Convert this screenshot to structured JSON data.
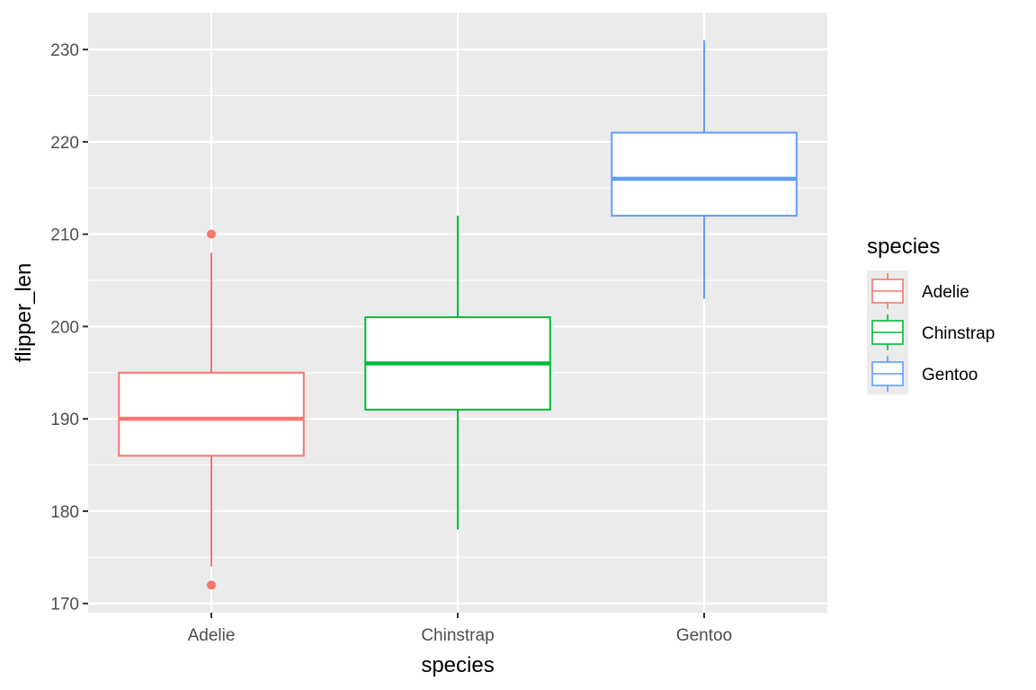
{
  "chart_data": {
    "type": "boxplot",
    "xlabel": "species",
    "ylabel": "flipper_len",
    "ylim": [
      169,
      234
    ],
    "yticks": [
      170,
      180,
      190,
      200,
      210,
      220,
      230
    ],
    "grid": true,
    "categories": [
      "Adelie",
      "Chinstrap",
      "Gentoo"
    ],
    "boxes": [
      {
        "name": "Adelie",
        "lower_whisker": 174,
        "q1": 186,
        "median": 190,
        "q3": 195,
        "upper_whisker": 208,
        "outliers": [
          210,
          172
        ],
        "color": "#F8766D"
      },
      {
        "name": "Chinstrap",
        "lower_whisker": 178,
        "q1": 191,
        "median": 196,
        "q3": 201,
        "upper_whisker": 212,
        "outliers": [],
        "color": "#00BA38"
      },
      {
        "name": "Gentoo",
        "lower_whisker": 203,
        "q1": 212,
        "median": 216,
        "q3": 221,
        "upper_whisker": 231,
        "outliers": [],
        "color": "#619CFF"
      }
    ],
    "legend": {
      "title": "species",
      "placement": "right",
      "items": [
        "Adelie",
        "Chinstrap",
        "Gentoo"
      ]
    }
  },
  "colors": {
    "panel_background": "#EBEBEB",
    "grid": "#FFFFFF"
  }
}
